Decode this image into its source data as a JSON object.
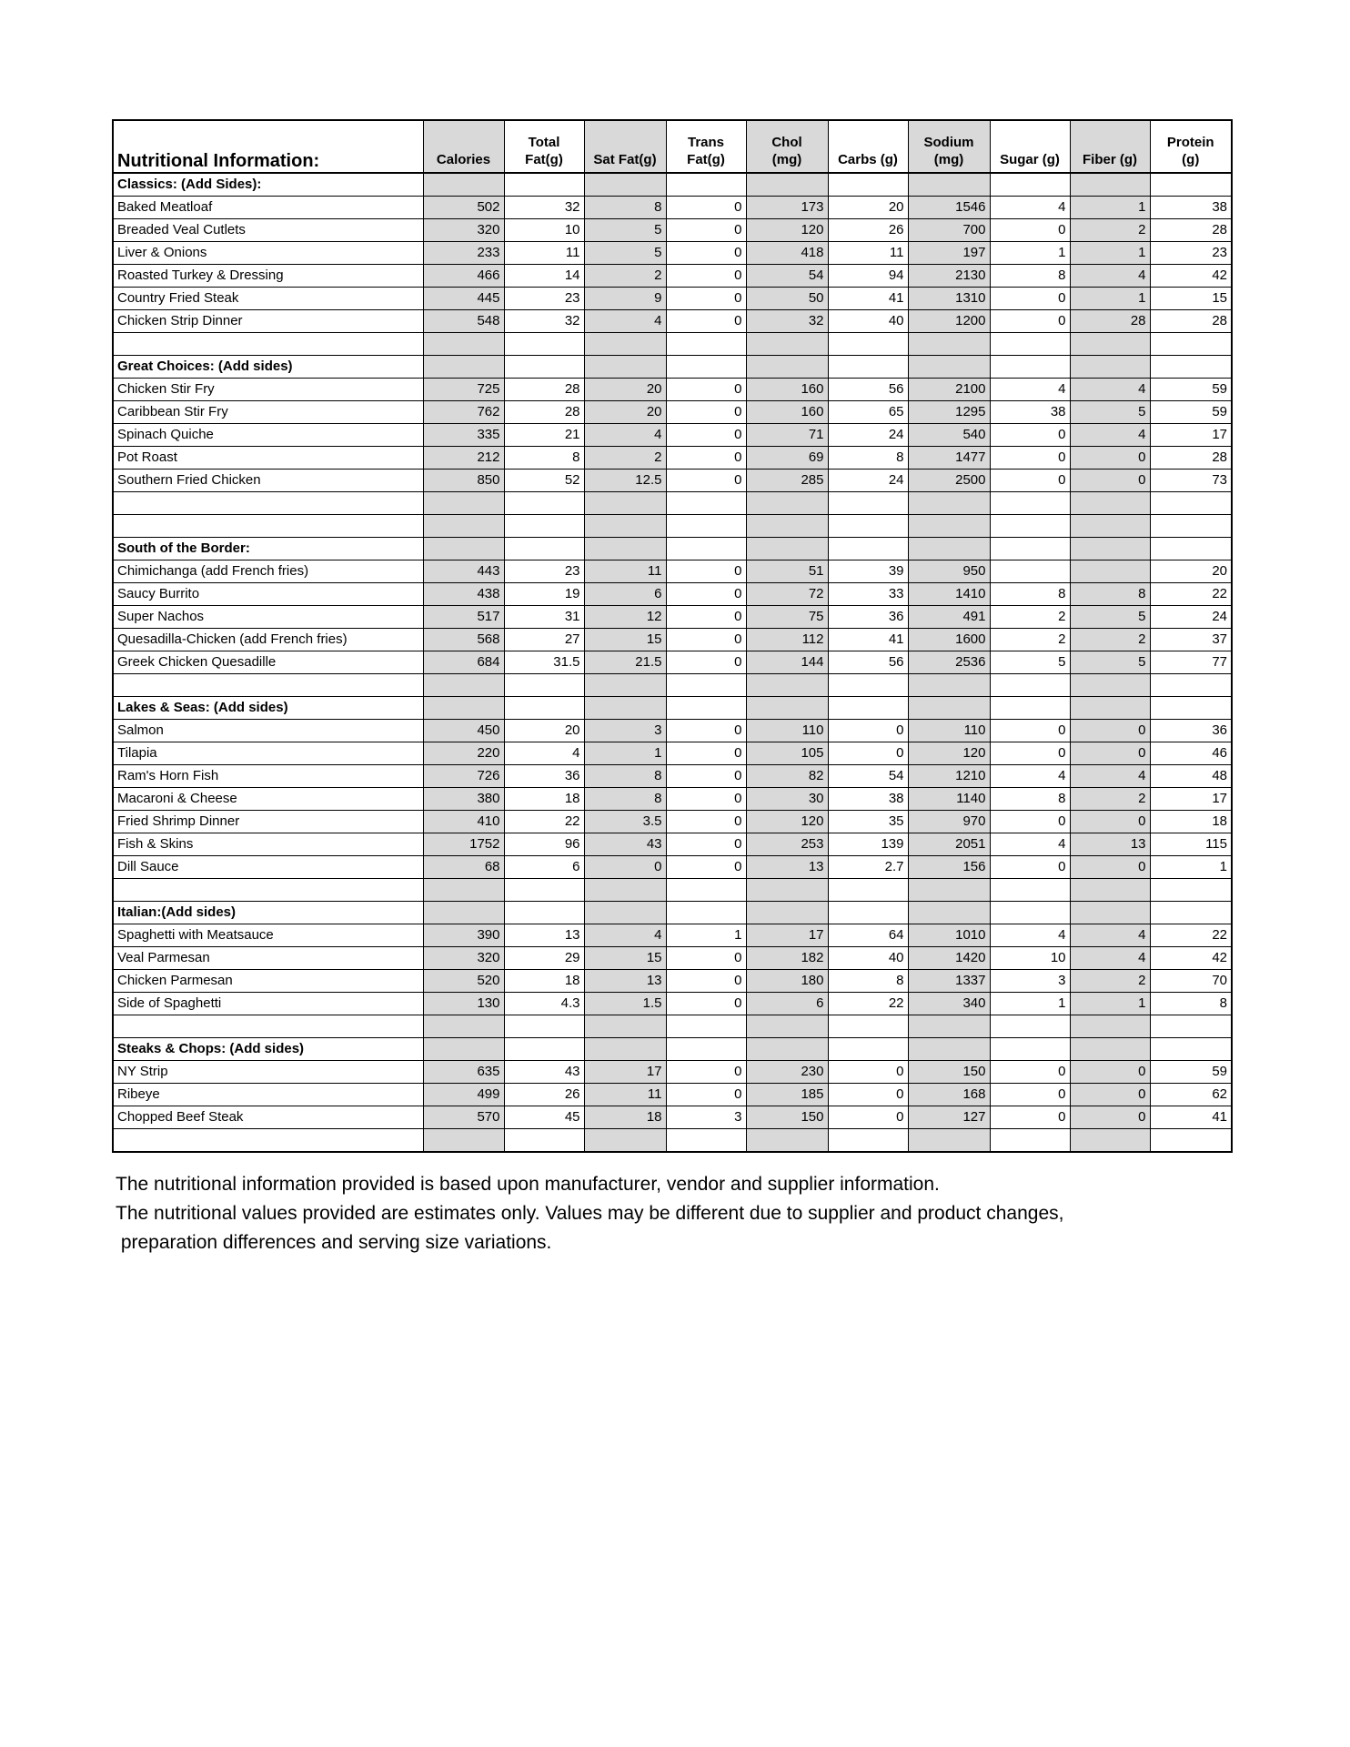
{
  "title": "Nutritional Information:",
  "columns": [
    "Calories",
    "Total Fat(g)",
    "Sat Fat(g)",
    "Trans Fat(g)",
    "Chol (mg)",
    "Carbs (g)",
    "Sodium (mg)",
    "Sugar (g)",
    "Fiber (g)",
    "Protein (g)"
  ],
  "column_lines": [
    [
      "",
      "Calories"
    ],
    [
      "Total",
      "Fat(g)"
    ],
    [
      "",
      "Sat Fat(g)"
    ],
    [
      "Trans",
      "Fat(g)"
    ],
    [
      "Chol",
      "(mg)"
    ],
    [
      "",
      "Carbs (g)"
    ],
    [
      "Sodium",
      "(mg)"
    ],
    [
      "",
      "Sugar (g)"
    ],
    [
      "",
      "Fiber (g)"
    ],
    [
      "Protein",
      "(g)"
    ]
  ],
  "shade_color": "#d9d9d9",
  "sections": [
    {
      "name": "Classics: (Add Sides):",
      "items": [
        [
          "Baked Meatloaf",
          "502",
          "32",
          "8",
          "0",
          "173",
          "20",
          "1546",
          "4",
          "1",
          "38"
        ],
        [
          "Breaded Veal Cutlets",
          "320",
          "10",
          "5",
          "0",
          "120",
          "26",
          "700",
          "0",
          "2",
          "28"
        ],
        [
          "Liver & Onions",
          "233",
          "11",
          "5",
          "0",
          "418",
          "11",
          "197",
          "1",
          "1",
          "23"
        ],
        [
          "Roasted Turkey & Dressing",
          "466",
          "14",
          "2",
          "0",
          "54",
          "94",
          "2130",
          "8",
          "4",
          "42"
        ],
        [
          "Country Fried Steak",
          "445",
          "23",
          "9",
          "0",
          "50",
          "41",
          "1310",
          "0",
          "1",
          "15"
        ],
        [
          "Chicken Strip Dinner",
          "548",
          "32",
          "4",
          "0",
          "32",
          "40",
          "1200",
          "0",
          "28",
          "28"
        ]
      ]
    },
    {
      "name": "Great Choices: (Add sides)",
      "items": [
        [
          "Chicken Stir Fry",
          "725",
          "28",
          "20",
          "0",
          "160",
          "56",
          "2100",
          "4",
          "4",
          "59"
        ],
        [
          "Caribbean Stir Fry",
          "762",
          "28",
          "20",
          "0",
          "160",
          "65",
          "1295",
          "38",
          "5",
          "59"
        ],
        [
          "Spinach Quiche",
          "335",
          "21",
          "4",
          "0",
          "71",
          "24",
          "540",
          "0",
          "4",
          "17"
        ],
        [
          "Pot Roast",
          "212",
          "8",
          "2",
          "0",
          "69",
          "8",
          "1477",
          "0",
          "0",
          "28"
        ],
        [
          "Southern Fried Chicken",
          "850",
          "52",
          "12.5",
          "0",
          "285",
          "24",
          "2500",
          "0",
          "0",
          "73"
        ]
      ]
    },
    {
      "name": "South of the Border:",
      "items": [
        [
          "Chimichanga (add French fries)",
          "443",
          "23",
          "11",
          "0",
          "51",
          "39",
          "950",
          "",
          "",
          "20"
        ],
        [
          "Saucy Burrito",
          "438",
          "19",
          "6",
          "0",
          "72",
          "33",
          "1410",
          "8",
          "8",
          "22"
        ],
        [
          "Super Nachos",
          "517",
          "31",
          "12",
          "0",
          "75",
          "36",
          "491",
          "2",
          "5",
          "24"
        ],
        [
          "Quesadilla-Chicken (add French fries)",
          "568",
          "27",
          "15",
          "0",
          "112",
          "41",
          "1600",
          "2",
          "2",
          "37"
        ],
        [
          "Greek Chicken Quesadille",
          "684",
          "31.5",
          "21.5",
          "0",
          "144",
          "56",
          "2536",
          "5",
          "5",
          "77"
        ]
      ]
    },
    {
      "name": "Lakes & Seas: (Add sides)",
      "items": [
        [
          "Salmon",
          "450",
          "20",
          "3",
          "0",
          "110",
          "0",
          "110",
          "0",
          "0",
          "36"
        ],
        [
          "Tilapia",
          "220",
          "4",
          "1",
          "0",
          "105",
          "0",
          "120",
          "0",
          "0",
          "46"
        ],
        [
          "Ram's Horn Fish",
          "726",
          "36",
          "8",
          "0",
          "82",
          "54",
          "1210",
          "4",
          "4",
          "48"
        ],
        [
          "Macaroni & Cheese",
          "380",
          "18",
          "8",
          "0",
          "30",
          "38",
          "1140",
          "8",
          "2",
          "17"
        ],
        [
          "Fried Shrimp Dinner",
          "410",
          "22",
          "3.5",
          "0",
          "120",
          "35",
          "970",
          "0",
          "0",
          "18"
        ],
        [
          "Fish & Skins",
          "1752",
          "96",
          "43",
          "0",
          "253",
          "139",
          "2051",
          "4",
          "13",
          "115"
        ],
        [
          "Dill Sauce",
          "68",
          "6",
          "0",
          "0",
          "13",
          "2.7",
          "156",
          "0",
          "0",
          "1"
        ]
      ]
    },
    {
      "name": "Italian:(Add sides)",
      "items": [
        [
          "Spaghetti with Meatsauce",
          "390",
          "13",
          "4",
          "1",
          "17",
          "64",
          "1010",
          "4",
          "4",
          "22"
        ],
        [
          "Veal Parmesan",
          "320",
          "29",
          "15",
          "0",
          "182",
          "40",
          "1420",
          "10",
          "4",
          "42"
        ],
        [
          "Chicken Parmesan",
          "520",
          "18",
          "13",
          "0",
          "180",
          "8",
          "1337",
          "3",
          "2",
          "70"
        ],
        [
          "Side of Spaghetti",
          "130",
          "4.3",
          "1.5",
          "0",
          "6",
          "22",
          "340",
          "1",
          "1",
          "8"
        ]
      ]
    },
    {
      "name": "Steaks & Chops: (Add sides)",
      "items": [
        [
          "NY Strip",
          "635",
          "43",
          "17",
          "0",
          "230",
          "0",
          "150",
          "0",
          "0",
          "59"
        ],
        [
          "Ribeye",
          "499",
          "26",
          "11",
          "0",
          "185",
          "0",
          "168",
          "0",
          "0",
          "62"
        ],
        [
          "Chopped Beef Steak",
          "570",
          "45",
          "18",
          "3",
          "150",
          "0",
          "127",
          "0",
          "0",
          "41"
        ]
      ]
    }
  ],
  "footer": [
    "The nutritional information provided is based upon manufacturer, vendor and supplier information.",
    "The nutritional values provided are estimates only. Values may be different due to supplier and product changes,",
    " preparation differences and serving size variations."
  ]
}
